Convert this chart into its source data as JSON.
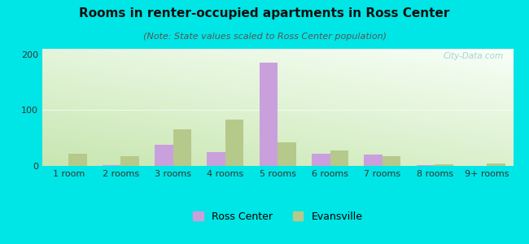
{
  "title": "Rooms in renter-occupied apartments in Ross Center",
  "subtitle": "(Note: State values scaled to Ross Center population)",
  "categories": [
    "1 room",
    "2 rooms",
    "3 rooms",
    "4 rooms",
    "5 rooms",
    "6 rooms",
    "7 rooms",
    "8 rooms",
    "9+ rooms"
  ],
  "ross_center": [
    0,
    2,
    38,
    25,
    185,
    22,
    20,
    2,
    0
  ],
  "evansville": [
    22,
    17,
    65,
    83,
    42,
    28,
    17,
    3,
    4
  ],
  "ross_color": "#c9a0dc",
  "evansville_color": "#b5c98a",
  "background_color": "#00e5e5",
  "ylim": [
    0,
    210
  ],
  "yticks": [
    0,
    100,
    200
  ],
  "bar_width": 0.35,
  "title_fontsize": 11,
  "subtitle_fontsize": 8,
  "legend_fontsize": 9,
  "tick_fontsize": 8,
  "watermark": "City-Data.com"
}
